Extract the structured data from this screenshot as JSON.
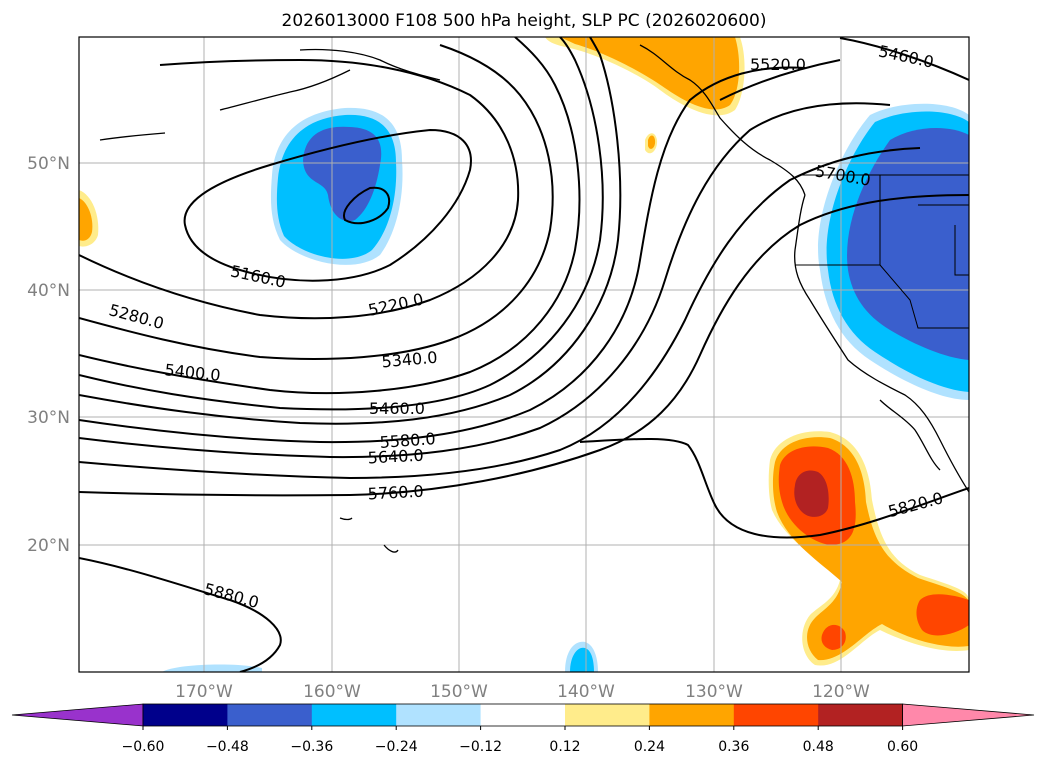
{
  "title": "2026013000 F108 500 hPa height, SLP PC (2026020600)",
  "lat_labels": [
    "50°N",
    "40°N",
    "30°N",
    "20°N"
  ],
  "lon_labels": [
    "170°W",
    "160°W",
    "150°W",
    "140°W",
    "130°W",
    "120°W"
  ],
  "contour_labels": [
    "5160.0",
    "5220.0",
    "5280.0",
    "5340.0",
    "5400.0",
    "5460.0",
    "5580.0",
    "5640.0",
    "5760.0",
    "5880.0",
    "5520.0",
    "5460.0",
    "5700.0",
    "5820.0"
  ],
  "colorbar": {
    "ticks": [
      "−0.60",
      "−0.48",
      "−0.36",
      "−0.24",
      "−0.12",
      "0.12",
      "0.24",
      "0.36",
      "0.48",
      "0.60"
    ],
    "colors": [
      "#9932CC",
      "#00008B",
      "#3A5FCD",
      "#00BFFF",
      "#B0E2FF",
      "#FFFFFF",
      "#FFEC8B",
      "#FFA500",
      "#FF4500",
      "#B22222",
      "#FF88AA"
    ]
  }
}
